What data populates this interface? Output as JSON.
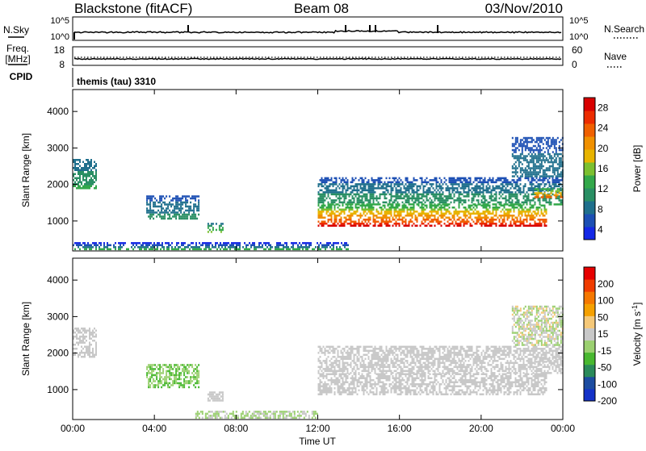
{
  "header": {
    "station": "Blackstone (fitACF)",
    "beam": "Beam 08",
    "date": "03/Nov/2010"
  },
  "nsky_panel": {
    "left_label": "N.Sky",
    "left_ticks": [
      "10^5",
      "10^0"
    ],
    "right_label": "N.Search",
    "right_ticks": [
      "10^5",
      "10^0"
    ]
  },
  "freq_panel": {
    "left_label_line1": "Freq.",
    "left_label_line2": "[MHz]",
    "left_ticks": [
      "18",
      "8"
    ],
    "right_label": "Nave",
    "right_ticks": [
      "60",
      "0"
    ]
  },
  "cpid": {
    "label": "CPID",
    "value": "themis (tau) 3310"
  },
  "colors": {
    "power_scale": [
      "#1428e6",
      "#1c4fb4",
      "#1f6f8c",
      "#2a8f64",
      "#33a84a",
      "#7cc030",
      "#e8b400",
      "#f09000",
      "#f06000",
      "#ec2c00",
      "#d80000"
    ],
    "velocity_scale": [
      "#e60000",
      "#f03c00",
      "#f57800",
      "#f5a000",
      "#f5c878",
      "#c8c8c8",
      "#9bd070",
      "#48b830",
      "#2a8a5a",
      "#1c4ca0",
      "#1432c8"
    ],
    "ground_scatter": "#b4b4b4"
  },
  "chart_data": [
    {
      "type": "heatmap",
      "title": "Power",
      "xlabel": "",
      "ylabel": "Slant Range [km]",
      "xlim": [
        0,
        24
      ],
      "ylim": [
        180,
        4600
      ],
      "xticks": [
        "00:00",
        "04:00",
        "08:00",
        "12:00",
        "16:00",
        "20:00",
        "00:00"
      ],
      "yticks": [
        1000,
        2000,
        3000,
        4000
      ],
      "colorbar": {
        "label": "Power [dB]",
        "ticks": [
          "28",
          "24",
          "20",
          "16",
          "12",
          "8",
          "4"
        ],
        "range": [
          0,
          30
        ]
      },
      "scatter_regions": [
        {
          "t_start": 0.0,
          "t_end": 1.2,
          "range_low": 1850,
          "range_high": 2700,
          "value_low": 6,
          "value_high": 12
        },
        {
          "t_start": 3.6,
          "t_end": 6.2,
          "range_low": 1050,
          "range_high": 1700,
          "value_low": 4,
          "value_high": 10
        },
        {
          "t_start": 6.6,
          "t_end": 7.4,
          "range_low": 650,
          "range_high": 950,
          "value_low": 8,
          "value_high": 16
        },
        {
          "t_start": 0.0,
          "t_end": 13.5,
          "range_low": 200,
          "range_high": 420,
          "value_low": 2,
          "value_high": 14
        },
        {
          "t_start": 12.0,
          "t_end": 23.2,
          "range_low": 820,
          "range_high": 1450,
          "value_low": 12,
          "value_high": 29
        },
        {
          "t_start": 12.0,
          "t_end": 24.0,
          "range_low": 1400,
          "range_high": 2200,
          "value_low": 4,
          "value_high": 12
        },
        {
          "t_start": 22.6,
          "t_end": 24.0,
          "range_low": 1600,
          "range_high": 1900,
          "value_low": 12,
          "value_high": 26
        },
        {
          "t_start": 21.5,
          "t_end": 24.0,
          "range_low": 2200,
          "range_high": 3300,
          "value_low": 4,
          "value_high": 8
        }
      ]
    },
    {
      "type": "heatmap",
      "title": "Velocity",
      "xlabel": "Time UT",
      "ylabel": "Slant Range [km]",
      "xlim": [
        0,
        24
      ],
      "ylim": [
        180,
        4600
      ],
      "xticks": [
        "00:00",
        "04:00",
        "08:00",
        "12:00",
        "16:00",
        "20:00",
        "00:00"
      ],
      "yticks": [
        1000,
        2000,
        3000,
        4000
      ],
      "colorbar": {
        "label": "Velocity [m s^-1]",
        "ticks": [
          "200",
          "100",
          "50",
          "15",
          "-15",
          "-50",
          "-100",
          "-200"
        ],
        "range": [
          -250,
          250
        ]
      },
      "scatter_regions": [
        {
          "t_start": 0.0,
          "t_end": 1.2,
          "range_low": 1850,
          "range_high": 2700,
          "value_low": -10,
          "value_high": 10
        },
        {
          "t_start": 3.6,
          "t_end": 6.2,
          "range_low": 1050,
          "range_high": 1700,
          "value_low": -90,
          "value_high": -40
        },
        {
          "t_start": 6.6,
          "t_end": 7.4,
          "range_low": 650,
          "range_high": 950,
          "value_low": -10,
          "value_high": 10
        },
        {
          "t_start": 6.0,
          "t_end": 12.0,
          "range_low": 200,
          "range_high": 420,
          "value_low": -40,
          "value_high": -15
        },
        {
          "t_start": 12.0,
          "t_end": 23.2,
          "range_low": 820,
          "range_high": 1450,
          "value_low": -10,
          "value_high": 10
        },
        {
          "t_start": 12.0,
          "t_end": 24.0,
          "range_low": 1400,
          "range_high": 2200,
          "value_low": -10,
          "value_high": 10
        },
        {
          "t_start": 22.6,
          "t_end": 24.0,
          "range_low": 1600,
          "range_high": 1900,
          "value_low": -10,
          "value_high": 10
        },
        {
          "t_start": 21.5,
          "t_end": 24.0,
          "range_low": 2200,
          "range_high": 3300,
          "value_low": -60,
          "value_high": 40
        }
      ]
    }
  ]
}
